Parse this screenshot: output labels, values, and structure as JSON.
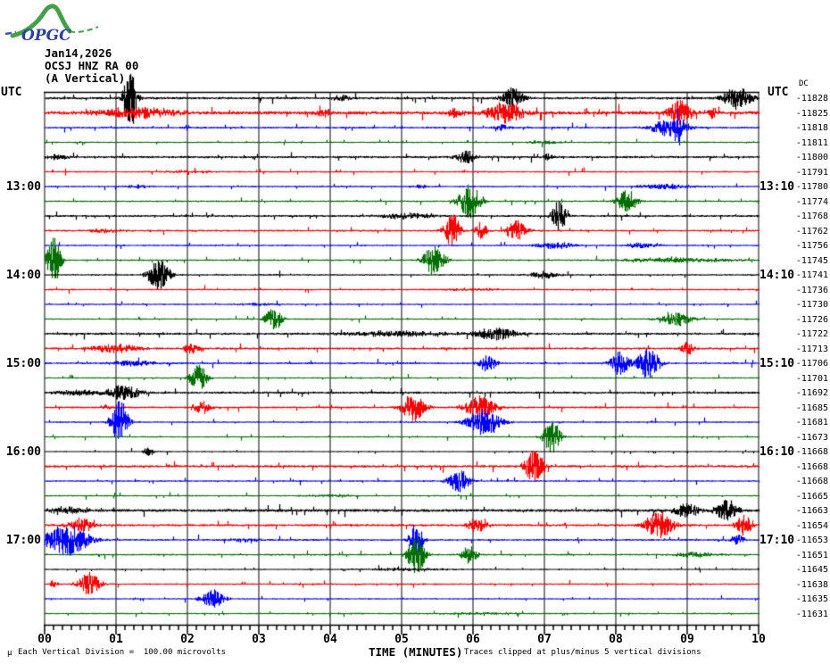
{
  "logo": {
    "text": "OPGC"
  },
  "header": {
    "date": "Jan14,2026",
    "station": "OCSJ HNZ RA 00",
    "component": "(A Vertical)"
  },
  "axis_left": {
    "title": "UTC",
    "hour_labels": [
      {
        "label": "13:00",
        "row": 7
      },
      {
        "label": "14:00",
        "row": 13
      },
      {
        "label": "15:00",
        "row": 19
      },
      {
        "label": "16:00",
        "row": 25
      },
      {
        "label": "17:00",
        "row": 31
      }
    ]
  },
  "axis_right": {
    "title": "UTC",
    "dc_label": "DC",
    "hour_labels": [
      {
        "label": "13:10",
        "row": 7
      },
      {
        "label": "14:10",
        "row": 13
      },
      {
        "label": "15:10",
        "row": 19
      },
      {
        "label": "16:10",
        "row": 25
      },
      {
        "label": "17:10",
        "row": 31
      }
    ]
  },
  "x_axis": {
    "title": "TIME (MINUTES)",
    "tick_labels": [
      "00",
      "01",
      "02",
      "03",
      "04",
      "05",
      "06",
      "07",
      "08",
      "09",
      "10"
    ]
  },
  "footer": {
    "micro_glyph": "µ",
    "scale_note": "Each Vertical Division =  100.00 microvolts",
    "clip_note": "Traces clipped at plus/minus 5 vertical divisions"
  },
  "chart_data": {
    "type": "line",
    "subtype": "helicorder-seismogram",
    "title": "OCSJ HNZ RA 00 (A Vertical) Jan14,2026",
    "xlabel": "TIME (MINUTES)",
    "x_range_minutes": [
      0,
      10
    ],
    "minutes_per_row": 10,
    "grid": "vertical-gray-every-minute",
    "minor_ticks_per_minute": 8,
    "clip_divisions": 5,
    "microvolts_per_division": 100.0,
    "colors": {
      "black": "#000000",
      "red": "#ff0000",
      "blue": "#0000ff",
      "green": "#006f00"
    },
    "rows": [
      {
        "utc": "12:00",
        "color": "black",
        "dc": -11828,
        "noise": 1.3,
        "events": [
          [
            1.2,
            34,
            0.12
          ],
          [
            4.15,
            4,
            0.15
          ],
          [
            6.55,
            12,
            0.2
          ],
          [
            9.7,
            13,
            0.25
          ]
        ]
      },
      {
        "utc": "12:10",
        "color": "red",
        "dc": -11825,
        "noise": 1.8,
        "events": [
          [
            1.3,
            6,
            0.8
          ],
          [
            3.9,
            5,
            0.15
          ],
          [
            5.75,
            5,
            0.15
          ],
          [
            6.45,
            12,
            0.35
          ],
          [
            8.9,
            16,
            0.2
          ],
          [
            9.35,
            6,
            0.1
          ]
        ]
      },
      {
        "utc": "12:20",
        "color": "blue",
        "dc": -11818,
        "noise": 1.0,
        "events": [
          [
            6.4,
            3,
            0.15
          ],
          [
            8.75,
            10,
            0.35
          ],
          [
            8.87,
            22,
            0.06
          ]
        ]
      },
      {
        "utc": "12:30",
        "color": "green",
        "dc": -11811,
        "noise": 0.8,
        "events": [
          [
            7.0,
            2,
            0.3
          ]
        ]
      },
      {
        "utc": "12:40",
        "color": "black",
        "dc": -11800,
        "noise": 1.2,
        "events": [
          [
            0.15,
            3,
            0.25
          ],
          [
            5.9,
            7,
            0.2
          ],
          [
            7.05,
            4,
            0.08
          ]
        ]
      },
      {
        "utc": "12:50",
        "color": "red",
        "dc": -11791,
        "noise": 0.9,
        "events": [
          [
            2.0,
            1.5,
            0.5
          ]
        ]
      },
      {
        "utc": "13:00",
        "color": "blue",
        "dc": -11780,
        "noise": 0.9,
        "events": [
          [
            1.3,
            2,
            0.2
          ],
          [
            5.25,
            2,
            0.15
          ],
          [
            8.7,
            3,
            0.5
          ]
        ]
      },
      {
        "utc": "13:10",
        "color": "green",
        "dc": -11774,
        "noise": 0.9,
        "events": [
          [
            5.95,
            20,
            0.2
          ],
          [
            8.15,
            14,
            0.18
          ]
        ]
      },
      {
        "utc": "13:20",
        "color": "black",
        "dc": -11768,
        "noise": 1.1,
        "events": [
          [
            5.05,
            3.5,
            0.5
          ],
          [
            7.2,
            20,
            0.12
          ]
        ]
      },
      {
        "utc": "13:30",
        "color": "red",
        "dc": -11762,
        "noise": 1.0,
        "events": [
          [
            0.85,
            3,
            0.3
          ],
          [
            5.7,
            20,
            0.15
          ],
          [
            6.1,
            10,
            0.12
          ],
          [
            6.6,
            12,
            0.18
          ]
        ]
      },
      {
        "utc": "13:40",
        "color": "blue",
        "dc": -11756,
        "noise": 0.9,
        "events": [
          [
            7.15,
            4,
            0.35
          ],
          [
            8.35,
            3.5,
            0.3
          ]
        ]
      },
      {
        "utc": "13:50",
        "color": "green",
        "dc": -11745,
        "noise": 0.9,
        "events": [
          [
            0.12,
            30,
            0.12
          ],
          [
            5.45,
            16,
            0.2
          ],
          [
            8.9,
            3,
            1.0
          ]
        ]
      },
      {
        "utc": "14:00",
        "color": "black",
        "dc": -11741,
        "noise": 0.9,
        "events": [
          [
            1.6,
            18,
            0.2
          ],
          [
            7.0,
            4,
            0.3
          ]
        ]
      },
      {
        "utc": "14:10",
        "color": "red",
        "dc": -11736,
        "noise": 0.9,
        "events": [
          [
            6.0,
            1.5,
            0.5
          ]
        ]
      },
      {
        "utc": "14:20",
        "color": "blue",
        "dc": -11730,
        "noise": 0.8,
        "events": [
          [
            3.0,
            1.2,
            0.4
          ]
        ]
      },
      {
        "utc": "14:30",
        "color": "green",
        "dc": -11726,
        "noise": 0.8,
        "events": [
          [
            3.2,
            14,
            0.15
          ],
          [
            8.85,
            7,
            0.3
          ]
        ]
      },
      {
        "utc": "14:40",
        "color": "black",
        "dc": -11722,
        "noise": 1.2,
        "events": [
          [
            4.9,
            3,
            1.0
          ],
          [
            6.3,
            7,
            0.4
          ]
        ]
      },
      {
        "utc": "14:50",
        "color": "red",
        "dc": -11713,
        "noise": 1.2,
        "events": [
          [
            1.0,
            5,
            0.45
          ],
          [
            2.05,
            6,
            0.15
          ],
          [
            9.0,
            7,
            0.12
          ]
        ]
      },
      {
        "utc": "15:00",
        "color": "blue",
        "dc": -11706,
        "noise": 1.0,
        "events": [
          [
            1.25,
            3.5,
            0.4
          ],
          [
            6.2,
            10,
            0.15
          ],
          [
            8.05,
            14,
            0.18
          ],
          [
            8.45,
            18,
            0.2
          ]
        ]
      },
      {
        "utc": "15:10",
        "color": "green",
        "dc": -11701,
        "noise": 0.8,
        "events": [
          [
            2.15,
            16,
            0.15
          ]
        ]
      },
      {
        "utc": "15:20",
        "color": "black",
        "dc": -11692,
        "noise": 1.2,
        "events": [
          [
            0.5,
            3,
            0.5
          ],
          [
            1.1,
            9,
            0.3
          ]
        ]
      },
      {
        "utc": "15:30",
        "color": "red",
        "dc": -11685,
        "noise": 1.1,
        "events": [
          [
            0.85,
            3,
            0.1
          ],
          [
            2.2,
            7,
            0.18
          ],
          [
            5.15,
            16,
            0.22
          ],
          [
            6.1,
            13,
            0.28
          ]
        ]
      },
      {
        "utc": "15:40",
        "color": "blue",
        "dc": -11681,
        "noise": 0.9,
        "events": [
          [
            1.05,
            26,
            0.15
          ],
          [
            6.15,
            15,
            0.3
          ]
        ]
      },
      {
        "utc": "15:50",
        "color": "green",
        "dc": -11673,
        "noise": 0.8,
        "events": [
          [
            7.1,
            20,
            0.15
          ]
        ]
      },
      {
        "utc": "16:00",
        "color": "black",
        "dc": -11668,
        "noise": 0.7,
        "events": [
          [
            1.45,
            5,
            0.1
          ]
        ]
      },
      {
        "utc": "16:10",
        "color": "red",
        "dc": -11668,
        "noise": 1.3,
        "events": [
          [
            6.85,
            18,
            0.18
          ]
        ]
      },
      {
        "utc": "16:20",
        "color": "blue",
        "dc": -11668,
        "noise": 0.9,
        "events": [
          [
            5.8,
            13,
            0.2
          ]
        ]
      },
      {
        "utc": "16:30",
        "color": "green",
        "dc": -11665,
        "noise": 0.8,
        "events": [
          [
            4.0,
            1.5,
            0.5
          ]
        ]
      },
      {
        "utc": "16:40",
        "color": "black",
        "dc": -11663,
        "noise": 1.5,
        "events": [
          [
            0.3,
            3.5,
            0.4
          ],
          [
            9.0,
            8,
            0.25
          ],
          [
            9.55,
            12,
            0.2
          ]
        ]
      },
      {
        "utc": "16:50",
        "color": "red",
        "dc": -11654,
        "noise": 1.2,
        "events": [
          [
            0.5,
            8,
            0.25
          ],
          [
            6.05,
            8,
            0.2
          ],
          [
            8.6,
            15,
            0.25
          ],
          [
            9.8,
            13,
            0.15
          ]
        ]
      },
      {
        "utc": "17:00",
        "color": "blue",
        "dc": -11653,
        "noise": 1.0,
        "events": [
          [
            0.3,
            18,
            0.4
          ],
          [
            2.8,
            2.5,
            0.3
          ],
          [
            5.2,
            20,
            0.12
          ],
          [
            9.7,
            6,
            0.12
          ]
        ]
      },
      {
        "utc": "17:10",
        "color": "green",
        "dc": -11651,
        "noise": 0.9,
        "events": [
          [
            5.2,
            24,
            0.15
          ],
          [
            5.95,
            11,
            0.15
          ],
          [
            9.1,
            3,
            0.4
          ]
        ]
      },
      {
        "utc": "17:20",
        "color": "black",
        "dc": -11645,
        "noise": 0.7,
        "events": [
          [
            5.0,
            1.5,
            1.0
          ]
        ]
      },
      {
        "utc": "17:30",
        "color": "red",
        "dc": -11638,
        "noise": 0.9,
        "events": [
          [
            0.12,
            5,
            0.06
          ],
          [
            0.62,
            14,
            0.2
          ]
        ]
      },
      {
        "utc": "17:40",
        "color": "blue",
        "dc": -11635,
        "noise": 0.8,
        "events": [
          [
            2.35,
            11,
            0.2
          ]
        ]
      },
      {
        "utc": "17:50",
        "color": "green",
        "dc": -11631,
        "noise": 0.8,
        "events": [
          [
            6.0,
            1.2,
            0.8
          ]
        ]
      }
    ]
  }
}
